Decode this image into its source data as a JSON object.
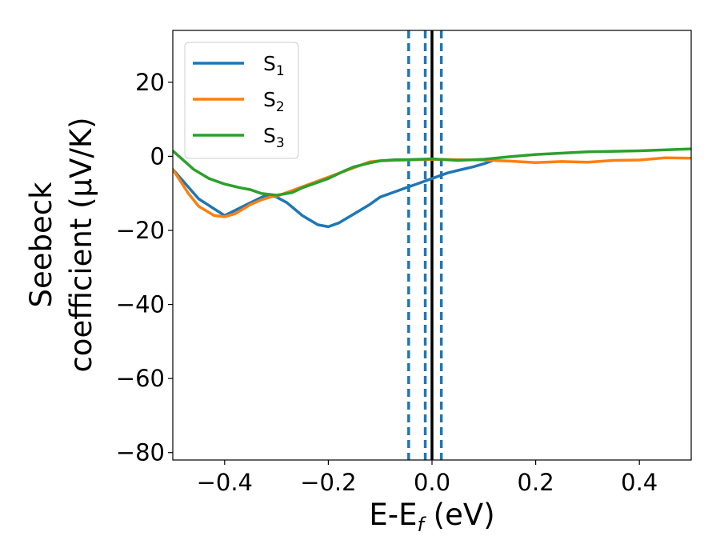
{
  "chart_data": {
    "type": "line",
    "xlabel": {
      "main": "E-E",
      "sub": "f",
      "unit": " (eV)"
    },
    "ylabel": {
      "line1": "Seebeck",
      "line2": "coefficient  (μV/K)"
    },
    "xlim": [
      -0.5,
      0.5
    ],
    "ylim": [
      -82,
      34
    ],
    "xticks": [
      -0.4,
      -0.2,
      0.0,
      0.2,
      0.4
    ],
    "xtick_labels": [
      "−0.4",
      "−0.2",
      "0.0",
      "0.2",
      "0.4"
    ],
    "yticks": [
      -80,
      -60,
      -40,
      -20,
      0,
      20
    ],
    "ytick_labels": [
      "−80",
      "−60",
      "−40",
      "−20",
      "0",
      "20"
    ],
    "legend_position": "top-left",
    "grid": false,
    "series": [
      {
        "name": "S",
        "sub": "1",
        "color": "#1f77b4",
        "x": [
          -0.5,
          -0.45,
          -0.4,
          -0.35,
          -0.32,
          -0.3,
          -0.28,
          -0.25,
          -0.22,
          -0.2,
          -0.18,
          -0.15,
          -0.12,
          -0.1,
          -0.07,
          -0.05,
          -0.03,
          0.0,
          0.03,
          0.05,
          0.08,
          0.1,
          0.12
        ],
        "y": [
          -3.5,
          -11.5,
          -16.0,
          -12.5,
          -10.5,
          -11.0,
          -12.5,
          -16.0,
          -18.5,
          -19.0,
          -18.0,
          -15.5,
          -13.0,
          -11.0,
          -9.5,
          -8.5,
          -7.5,
          -6.0,
          -4.5,
          -3.8,
          -2.8,
          -2.0,
          -1.0
        ]
      },
      {
        "name": "S",
        "sub": "2",
        "color": "#ff7f0e",
        "x": [
          -0.5,
          -0.47,
          -0.45,
          -0.42,
          -0.4,
          -0.38,
          -0.35,
          -0.33,
          -0.31,
          -0.3,
          -0.12,
          -0.1,
          -0.05,
          0.0,
          0.05,
          0.1,
          0.15,
          0.2,
          0.25,
          0.3,
          0.35,
          0.4,
          0.45,
          0.5
        ],
        "y": [
          -3.5,
          -10.0,
          -13.5,
          -16.0,
          -16.3,
          -15.5,
          -13.0,
          -11.8,
          -10.9,
          -10.8,
          -1.5,
          -1.2,
          -1.0,
          -0.8,
          -0.9,
          -1.0,
          -1.3,
          -1.7,
          -1.4,
          -1.6,
          -1.1,
          -1.0,
          -0.4,
          -0.5
        ]
      },
      {
        "name": "S",
        "sub": "3",
        "color": "#2ca02c",
        "x": [
          -0.5,
          -0.46,
          -0.43,
          -0.4,
          -0.37,
          -0.35,
          -0.33,
          -0.3,
          -0.27,
          -0.25,
          -0.22,
          -0.2,
          -0.17,
          -0.15,
          -0.12,
          -0.1,
          -0.07,
          -0.05,
          0.0,
          0.05,
          0.1,
          0.15,
          0.2,
          0.3,
          0.4,
          0.5
        ],
        "y": [
          1.5,
          -3.5,
          -6.0,
          -7.5,
          -8.5,
          -9.0,
          -10.0,
          -10.5,
          -9.8,
          -8.5,
          -7.0,
          -6.0,
          -4.0,
          -2.8,
          -1.8,
          -1.2,
          -0.9,
          -0.9,
          -0.7,
          -1.1,
          -0.8,
          -0.1,
          0.5,
          1.2,
          1.5,
          2.0
        ]
      }
    ],
    "vlines": [
      {
        "x": -0.045,
        "style": "dashed",
        "color": "#1f77b4"
      },
      {
        "x": -0.013,
        "style": "dashed",
        "color": "#1f77b4"
      },
      {
        "x": 0.018,
        "style": "dashed",
        "color": "#1f77b4"
      },
      {
        "x": 0.0,
        "style": "solid",
        "color": "#000000"
      }
    ]
  }
}
